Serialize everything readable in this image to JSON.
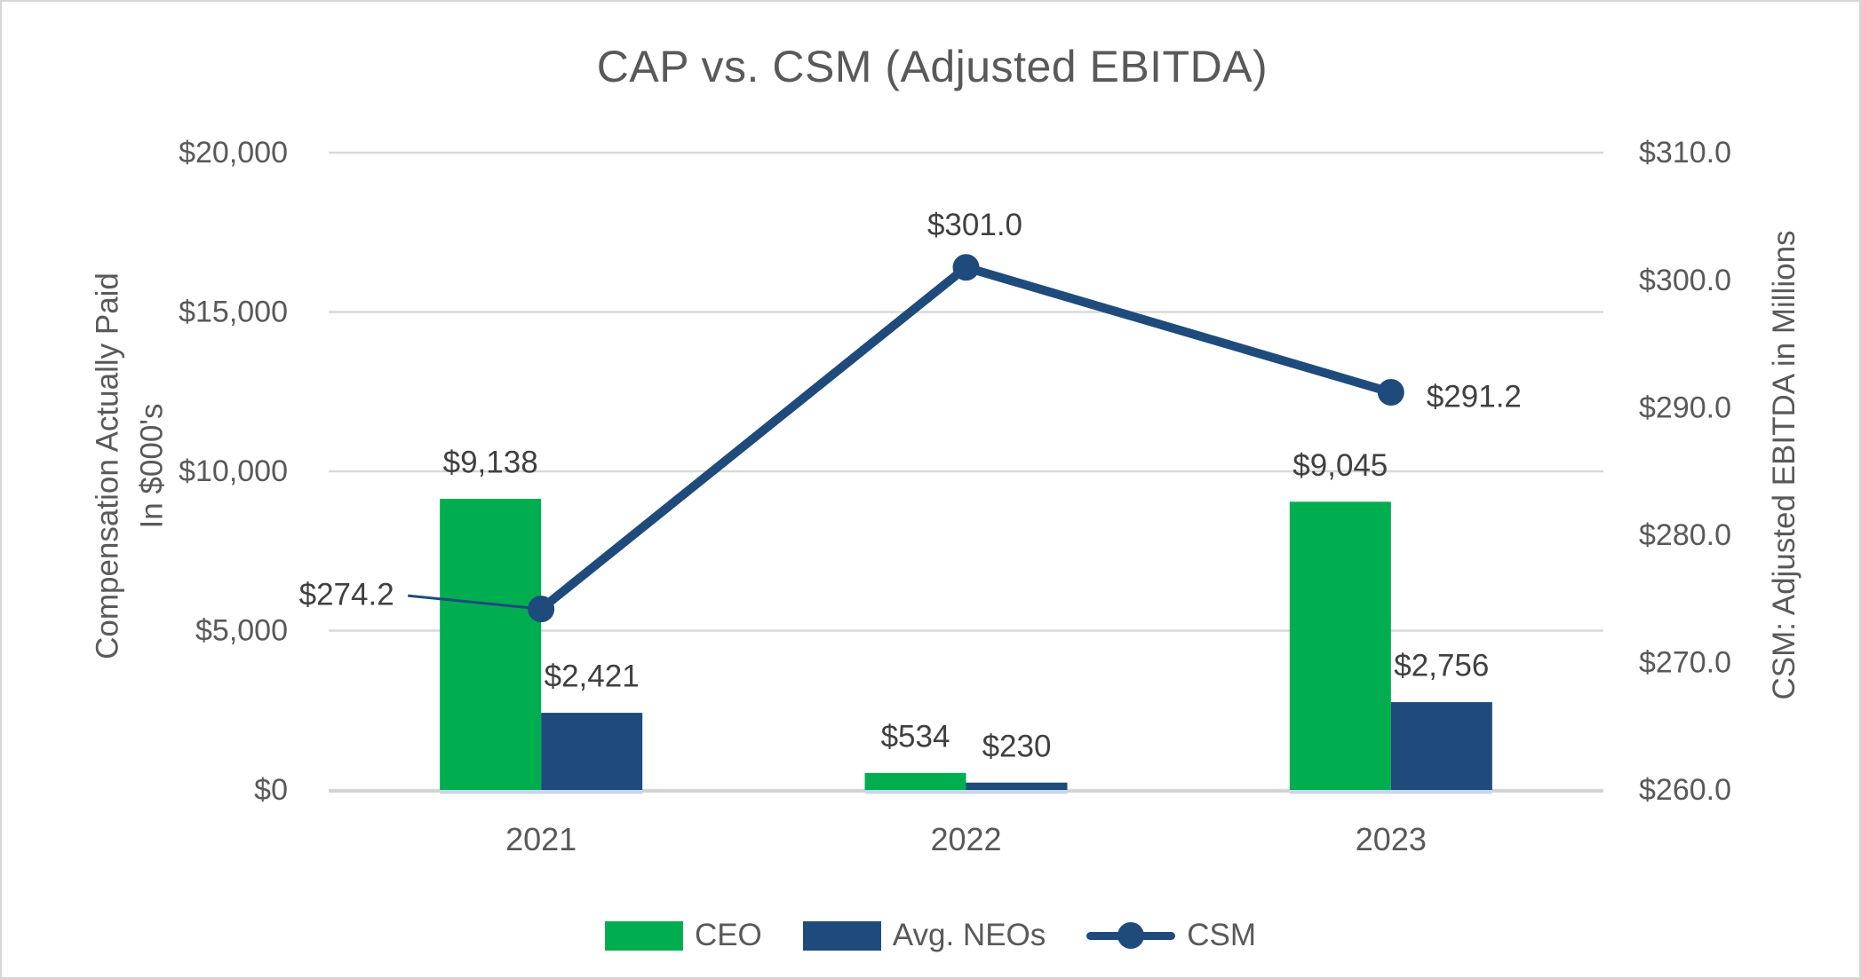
{
  "title": "CAP vs. CSM (Adjusted EBITDA)",
  "left_axis": {
    "title_line1": "Compensation Actually Paid",
    "title_line2": "In $000's",
    "ticks": [
      {
        "value": 20000,
        "label": "$20,000"
      },
      {
        "value": 15000,
        "label": "$15,000"
      },
      {
        "value": 10000,
        "label": "$10,000"
      },
      {
        "value": 5000,
        "label": "$5,000"
      },
      {
        "value": 0,
        "label": "$0"
      }
    ]
  },
  "right_axis": {
    "title": "CSM: Adjusted EBITDA in Millions",
    "ticks": [
      {
        "value": 310.0,
        "label": "$310.0"
      },
      {
        "value": 300.0,
        "label": "$300.0"
      },
      {
        "value": 290.0,
        "label": "$290.0"
      },
      {
        "value": 280.0,
        "label": "$280.0"
      },
      {
        "value": 270.0,
        "label": "$270.0"
      },
      {
        "value": 260.0,
        "label": "$260.0"
      }
    ]
  },
  "legend": [
    {
      "label": "CEO",
      "type": "bar",
      "color": "#00AE50"
    },
    {
      "label": "Avg. NEOs",
      "type": "bar",
      "color": "#1F4B7C"
    },
    {
      "label": "CSM",
      "type": "line",
      "color": "#1F4B7C"
    }
  ],
  "colors": {
    "ceo_bar": "#00AE50",
    "neo_bar": "#1F4B7C",
    "csm_line": "#1F4B7C",
    "gridline": "#D9D9D9",
    "axis_line": "#D2D2D2",
    "baseline_accent": "#C9D7EC",
    "title_text": "#595959",
    "axis_text": "#595959",
    "data_label_text": "#404040"
  },
  "chart_data": {
    "type": "combo-bar-line",
    "title": "CAP vs. CSM (Adjusted EBITDA)",
    "categories": [
      "2021",
      "2022",
      "2023"
    ],
    "series": [
      {
        "name": "CEO",
        "type": "bar",
        "axis": "left",
        "color": "#00AE50",
        "values": [
          9138,
          534,
          9045
        ],
        "labels": [
          "$9,138",
          "$534",
          "$9,045"
        ]
      },
      {
        "name": "Avg. NEOs",
        "type": "bar",
        "axis": "left",
        "color": "#1F4B7C",
        "values": [
          2421,
          230,
          2756
        ],
        "labels": [
          "$2,421",
          "$230",
          "$2,756"
        ]
      },
      {
        "name": "CSM",
        "type": "line",
        "axis": "right",
        "color": "#1F4B7C",
        "values": [
          274.2,
          301.0,
          291.2
        ],
        "labels": [
          "$274.2",
          "$301.0",
          "$291.2"
        ]
      }
    ],
    "left_ylabel": "Compensation Actually Paid In $000's",
    "right_ylabel": "CSM: Adjusted EBITDA in Millions",
    "left_ylim": [
      0,
      20000
    ],
    "right_ylim": [
      260,
      310
    ],
    "grid": true,
    "legend_position": "bottom"
  }
}
